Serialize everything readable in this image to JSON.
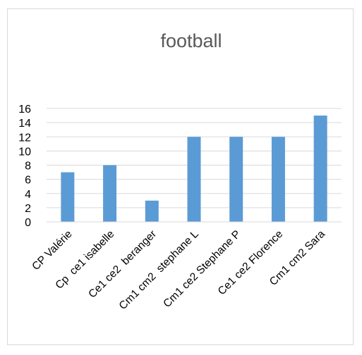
{
  "chart_data": {
    "type": "bar",
    "title": "football",
    "xlabel": "",
    "ylabel": "",
    "categories": [
      "CP Valérie",
      "Cp  ce1 isabelle",
      "Ce1 ce2  beranger",
      "Cm1 cm2  stephane L",
      "Cm1 ce2 Stephane P",
      "Ce1 ce2 Florence",
      "Cm1 cm2 Sara"
    ],
    "values": [
      7,
      8,
      3,
      12,
      12,
      12,
      15
    ],
    "ylim": [
      0,
      16
    ],
    "yticks": [
      0,
      2,
      4,
      6,
      8,
      10,
      12,
      14,
      16
    ],
    "grid": true,
    "legend": "none",
    "colors": {
      "bar": "#5b9bd5",
      "grid": "#d9d9d9",
      "axis": "#d9d9d9",
      "title": "#595959"
    }
  }
}
